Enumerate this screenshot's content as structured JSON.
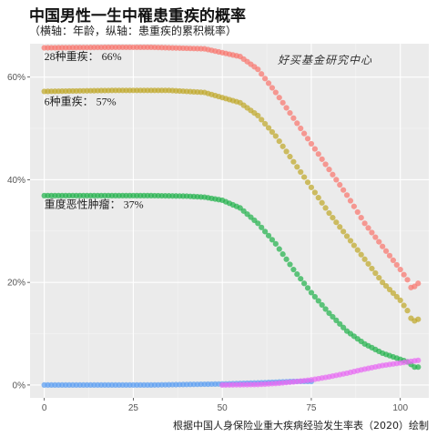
{
  "title": "中国男性一生中罹患重疾的概率",
  "subtitle": "（横轴：年龄，纵轴：患重疾的累积概率）",
  "caption": "根据中国人身保险业重大疾病经验发生率表（2020）绘制",
  "watermark": "好买基金研究中心",
  "chart_data": {
    "type": "scatter",
    "xlim": [
      -4,
      108
    ],
    "ylim": [
      -0.025,
      0.665
    ],
    "x_ticks": [
      0,
      25,
      50,
      75,
      100
    ],
    "y_ticks": [
      0,
      0.2,
      0.4,
      0.6
    ],
    "y_tick_labels": [
      "0%",
      "20%",
      "40%",
      "60%"
    ],
    "grid": true,
    "annotations": [
      {
        "text": "28种重疾：  66%",
        "x": 0,
        "y": 0.633
      },
      {
        "text": "6种重疾：  57%",
        "x": 0,
        "y": 0.545
      },
      {
        "text": "重度恶性肿瘤：  37%",
        "x": 0,
        "y": 0.345
      }
    ],
    "series": [
      {
        "color": "#F8766D",
        "anchors": [
          [
            0,
            0.657
          ],
          [
            20,
            0.658
          ],
          [
            30,
            0.658
          ],
          [
            35,
            0.657
          ],
          [
            45,
            0.655
          ],
          [
            55,
            0.64
          ],
          [
            60,
            0.615
          ],
          [
            65,
            0.57
          ],
          [
            70,
            0.52
          ],
          [
            75,
            0.47
          ],
          [
            80,
            0.42
          ],
          [
            85,
            0.37
          ],
          [
            90,
            0.315
          ],
          [
            95,
            0.27
          ],
          [
            100,
            0.225
          ],
          [
            102,
            0.205
          ],
          [
            103,
            0.19
          ],
          [
            104,
            0.192
          ],
          [
            105,
            0.198
          ]
        ],
        "endpoint": 105
      },
      {
        "color": "#BFA72A",
        "anchors": [
          [
            0,
            0.572
          ],
          [
            20,
            0.574
          ],
          [
            30,
            0.574
          ],
          [
            35,
            0.574
          ],
          [
            45,
            0.57
          ],
          [
            55,
            0.55
          ],
          [
            60,
            0.525
          ],
          [
            65,
            0.485
          ],
          [
            70,
            0.435
          ],
          [
            75,
            0.385
          ],
          [
            80,
            0.335
          ],
          [
            85,
            0.29
          ],
          [
            90,
            0.245
          ],
          [
            95,
            0.2
          ],
          [
            100,
            0.165
          ],
          [
            102,
            0.145
          ],
          [
            103,
            0.13
          ],
          [
            104,
            0.125
          ],
          [
            105,
            0.128
          ]
        ],
        "endpoint": 105
      },
      {
        "color": "#22B24C",
        "anchors": [
          [
            0,
            0.369
          ],
          [
            20,
            0.369
          ],
          [
            30,
            0.369
          ],
          [
            40,
            0.368
          ],
          [
            45,
            0.366
          ],
          [
            50,
            0.36
          ],
          [
            55,
            0.345
          ],
          [
            60,
            0.315
          ],
          [
            65,
            0.275
          ],
          [
            70,
            0.225
          ],
          [
            75,
            0.18
          ],
          [
            80,
            0.14
          ],
          [
            85,
            0.105
          ],
          [
            90,
            0.08
          ],
          [
            95,
            0.062
          ],
          [
            100,
            0.05
          ],
          [
            102,
            0.045
          ],
          [
            104,
            0.035
          ],
          [
            105,
            0.035
          ]
        ],
        "endpoint": 105
      },
      {
        "color": "#5B9EF1",
        "anchors": [
          [
            0,
            0.0
          ],
          [
            30,
            0.0
          ],
          [
            50,
            0.002
          ],
          [
            60,
            0.004
          ],
          [
            70,
            0.007
          ],
          [
            75,
            0.007
          ]
        ],
        "endpoint": 75
      },
      {
        "color": "#E76BF3",
        "anchors": [
          [
            50,
            0.0
          ],
          [
            60,
            0.001
          ],
          [
            65,
            0.003
          ],
          [
            70,
            0.006
          ],
          [
            75,
            0.01
          ],
          [
            80,
            0.016
          ],
          [
            85,
            0.023
          ],
          [
            90,
            0.031
          ],
          [
            95,
            0.038
          ],
          [
            100,
            0.043
          ],
          [
            103,
            0.046
          ],
          [
            105,
            0.048
          ]
        ],
        "endpoint": 105
      }
    ]
  }
}
